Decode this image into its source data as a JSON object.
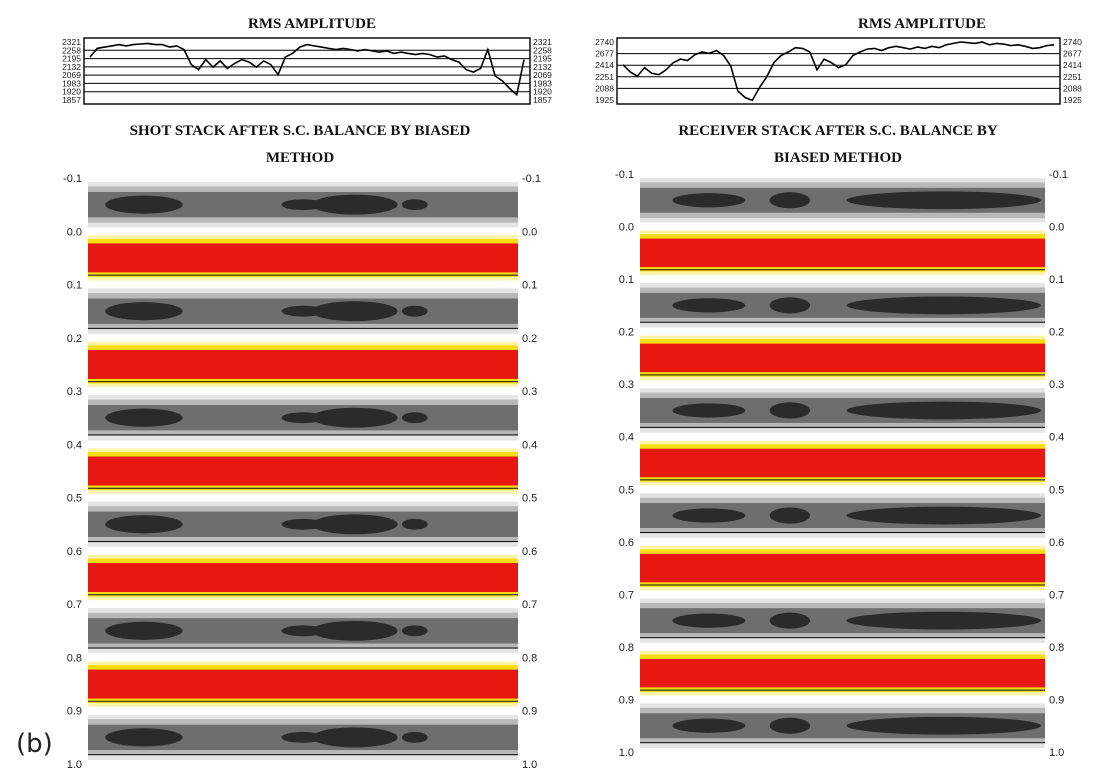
{
  "figure_label": "(b)",
  "chart_data": [
    {
      "type": "line",
      "title": "RMS AMPLITUDE",
      "yticks": [
        "2321",
        "2258",
        "2195",
        "2132",
        "2069",
        "1983",
        "1920",
        "1857"
      ],
      "ylim": [
        1857,
        2321
      ],
      "x": [
        0,
        1,
        2,
        3,
        4,
        5,
        6,
        7,
        8,
        9,
        10,
        11,
        12,
        13,
        14,
        15,
        16,
        17,
        18,
        19,
        20,
        21,
        22,
        23,
        24,
        25,
        26,
        27,
        28,
        29,
        30,
        31,
        32,
        33,
        34,
        35,
        36,
        37,
        38,
        39,
        40,
        41,
        42,
        43,
        44,
        45,
        46,
        47,
        48,
        49,
        50,
        51,
        52,
        53,
        54,
        55,
        56,
        57,
        58,
        59,
        60
      ],
      "values": [
        2200,
        2270,
        2280,
        2290,
        2300,
        2290,
        2300,
        2305,
        2310,
        2300,
        2300,
        2280,
        2290,
        2260,
        2140,
        2100,
        2180,
        2120,
        2170,
        2110,
        2150,
        2180,
        2160,
        2120,
        2170,
        2140,
        2060,
        2200,
        2230,
        2280,
        2300,
        2290,
        2280,
        2270,
        2260,
        2270,
        2260,
        2250,
        2260,
        2250,
        2240,
        2250,
        2230,
        2240,
        2230,
        2220,
        2230,
        2220,
        2200,
        2210,
        2180,
        2160,
        2100,
        2080,
        2110,
        2260,
        2050,
        2010,
        1950,
        1900,
        2180
      ],
      "grid": true,
      "legend": "none"
    },
    {
      "type": "line",
      "title": "RMS AMPLITUDE",
      "yticks": [
        "2740",
        "2677",
        "2414",
        "2251",
        "2088",
        "1925"
      ],
      "ylim": [
        1925,
        2740
      ],
      "x": [
        0,
        1,
        2,
        3,
        4,
        5,
        6,
        7,
        8,
        9,
        10,
        11,
        12,
        13,
        14,
        15,
        16,
        17,
        18,
        19,
        20,
        21,
        22,
        23,
        24,
        25,
        26,
        27,
        28,
        29,
        30,
        31,
        32,
        33,
        34,
        35,
        36,
        37,
        38,
        39,
        40,
        41,
        42,
        43,
        44,
        45,
        46,
        47,
        48,
        49,
        50,
        51,
        52,
        53,
        54,
        55,
        56,
        57,
        58,
        59,
        60
      ],
      "values": [
        2420,
        2320,
        2260,
        2380,
        2300,
        2280,
        2350,
        2450,
        2500,
        2480,
        2560,
        2600,
        2580,
        2620,
        2550,
        2400,
        2050,
        1960,
        1920,
        2100,
        2250,
        2450,
        2550,
        2600,
        2660,
        2650,
        2600,
        2350,
        2500,
        2450,
        2380,
        2420,
        2550,
        2600,
        2640,
        2650,
        2620,
        2660,
        2680,
        2660,
        2640,
        2670,
        2650,
        2680,
        2660,
        2700,
        2720,
        2740,
        2730,
        2720,
        2740,
        2700,
        2720,
        2710,
        2690,
        2700,
        2680,
        2650,
        2660,
        2690,
        2700
      ],
      "grid": true,
      "legend": "none"
    },
    {
      "type": "heatmap",
      "title_lines": [
        "SHOT STACK  AFTER S.C. BALANCE BY BIASED",
        "METHOD"
      ],
      "yticks": [
        "-0.1",
        "0.0",
        "0.1",
        "0.2",
        "0.3",
        "0.4",
        "0.5",
        "0.6",
        "0.7",
        "0.8",
        "0.9",
        "1.0"
      ],
      "ylim": [
        -0.1,
        1.0
      ],
      "bands": [
        {
          "from": -0.1,
          "to": 0.0,
          "kind": "gray"
        },
        {
          "from": 0.0,
          "to": 0.1,
          "kind": "red"
        },
        {
          "from": 0.1,
          "to": 0.2,
          "kind": "gray"
        },
        {
          "from": 0.2,
          "to": 0.3,
          "kind": "red"
        },
        {
          "from": 0.3,
          "to": 0.4,
          "kind": "gray"
        },
        {
          "from": 0.4,
          "to": 0.5,
          "kind": "red"
        },
        {
          "from": 0.5,
          "to": 0.6,
          "kind": "gray"
        },
        {
          "from": 0.6,
          "to": 0.7,
          "kind": "red"
        },
        {
          "from": 0.7,
          "to": 0.8,
          "kind": "gray"
        },
        {
          "from": 0.8,
          "to": 0.9,
          "kind": "red"
        },
        {
          "from": 0.9,
          "to": 1.0,
          "kind": "gray"
        }
      ],
      "palette": {
        "red": "#e8170f",
        "yellow": "#f5dd10",
        "light_yellow": "#fbf4a8",
        "gray_dark": "#2b2b2b",
        "gray_mid": "#6e6e6e",
        "gray_light": "#b8b8b8"
      }
    },
    {
      "type": "heatmap",
      "title_lines": [
        "RECEIVER STACK AFTER S.C. BALANCE BY",
        "BIASED METHOD"
      ],
      "yticks": [
        "-0.1",
        "0.0",
        "0.1",
        "0.2",
        "0.3",
        "0.4",
        "0.5",
        "0.6",
        "0.7",
        "0.8",
        "0.9",
        "1.0"
      ],
      "ylim": [
        -0.1,
        1.0
      ],
      "bands": [
        {
          "from": -0.1,
          "to": 0.0,
          "kind": "gray"
        },
        {
          "from": 0.0,
          "to": 0.1,
          "kind": "red"
        },
        {
          "from": 0.1,
          "to": 0.2,
          "kind": "gray"
        },
        {
          "from": 0.2,
          "to": 0.3,
          "kind": "red"
        },
        {
          "from": 0.3,
          "to": 0.4,
          "kind": "gray"
        },
        {
          "from": 0.4,
          "to": 0.5,
          "kind": "red"
        },
        {
          "from": 0.5,
          "to": 0.6,
          "kind": "gray"
        },
        {
          "from": 0.6,
          "to": 0.7,
          "kind": "red"
        },
        {
          "from": 0.7,
          "to": 0.8,
          "kind": "gray"
        },
        {
          "from": 0.8,
          "to": 0.9,
          "kind": "red"
        },
        {
          "from": 0.9,
          "to": 1.0,
          "kind": "gray"
        }
      ],
      "palette": {
        "red": "#e8170f",
        "yellow": "#f5dd10",
        "light_yellow": "#fbf4a8",
        "gray_dark": "#2b2b2b",
        "gray_mid": "#6e6e6e",
        "gray_light": "#b8b8b8"
      }
    }
  ]
}
